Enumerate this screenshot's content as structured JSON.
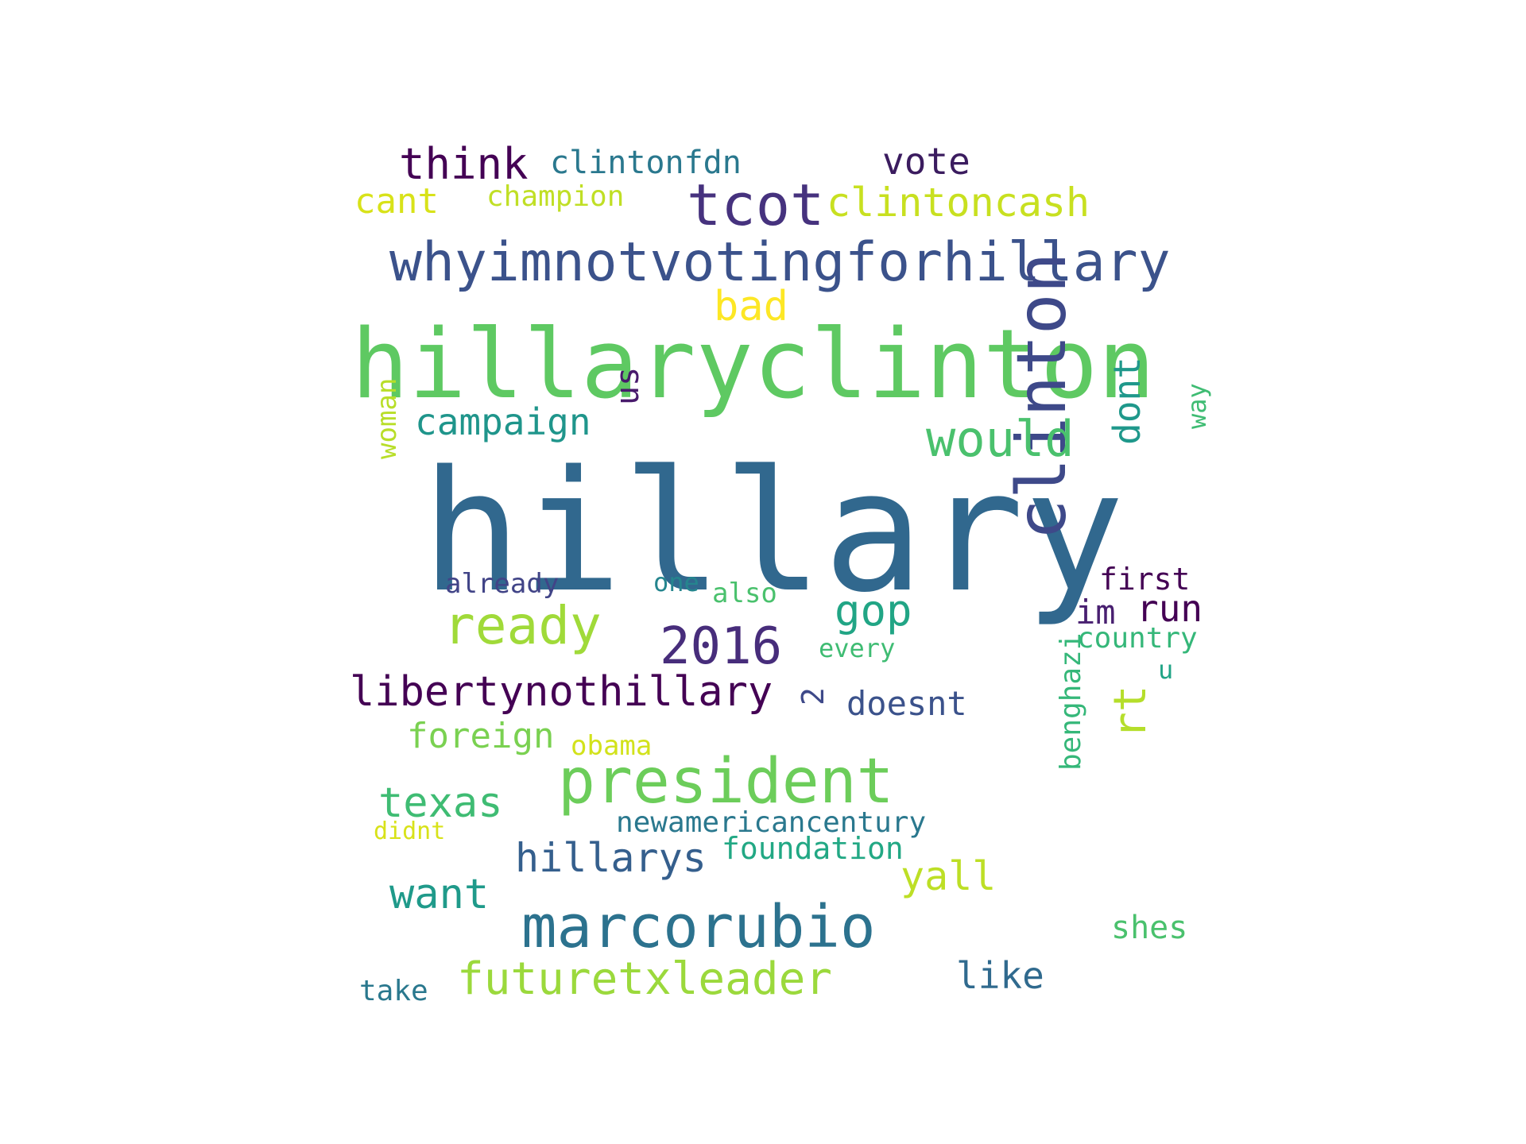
{
  "words": [
    {
      "text": "hillary",
      "color": "#31688e",
      "vertical": false
    },
    {
      "text": "hillaryclinton",
      "color": "#5ec962",
      "vertical": false
    },
    {
      "text": "whyimnotvotingforhillary",
      "color": "#3b528b",
      "vertical": false
    },
    {
      "text": "clinton",
      "color": "#3e4989",
      "vertical": true
    },
    {
      "text": "president",
      "color": "#6ccd5a",
      "vertical": false
    },
    {
      "text": "marcorubio",
      "color": "#2c728e",
      "vertical": false
    },
    {
      "text": "tcot",
      "color": "#46327e",
      "vertical": false
    },
    {
      "text": "ready",
      "color": "#a0da39",
      "vertical": false
    },
    {
      "text": "2016",
      "color": "#472d7b",
      "vertical": false
    },
    {
      "text": "would",
      "color": "#4ac16d",
      "vertical": false
    },
    {
      "text": "futuretxleader",
      "color": "#9bd93c",
      "vertical": false
    },
    {
      "text": "libertynothillary",
      "color": "#440154",
      "vertical": false
    },
    {
      "text": "think",
      "color": "#440154",
      "vertical": false
    },
    {
      "text": "clintoncash",
      "color": "#c8e020",
      "vertical": false
    },
    {
      "text": "gop",
      "color": "#21a585",
      "vertical": false
    },
    {
      "text": "rt",
      "color": "#b5de2b",
      "vertical": true
    },
    {
      "text": "texas",
      "color": "#3fbc73",
      "vertical": false
    },
    {
      "text": "want",
      "color": "#1f9a8a",
      "vertical": false
    },
    {
      "text": "hillarys",
      "color": "#355f8d",
      "vertical": false
    },
    {
      "text": "campaign",
      "color": "#1f958b",
      "vertical": false
    },
    {
      "text": "vote",
      "color": "#3b1c5f",
      "vertical": false
    },
    {
      "text": "yall",
      "color": "#bddf26",
      "vertical": false
    },
    {
      "text": "dont",
      "color": "#1f988b",
      "vertical": true
    },
    {
      "text": "run",
      "color": "#440154",
      "vertical": false
    },
    {
      "text": "bad",
      "color": "#fde725",
      "vertical": false
    },
    {
      "text": "like",
      "color": "#306a8e",
      "vertical": false
    },
    {
      "text": "doesnt",
      "color": "#3b528b",
      "vertical": false
    },
    {
      "text": "cant",
      "color": "#d8e219",
      "vertical": false
    },
    {
      "text": "clintonfdn",
      "color": "#2a788e",
      "vertical": false
    },
    {
      "text": "foreign",
      "color": "#7ad151",
      "vertical": false
    },
    {
      "text": "im",
      "color": "#481f70",
      "vertical": false
    },
    {
      "text": "benghazi",
      "color": "#35b779",
      "vertical": true
    },
    {
      "text": "foundation",
      "color": "#22a884",
      "vertical": false
    },
    {
      "text": "newamericancentury",
      "color": "#2a788e",
      "vertical": false
    },
    {
      "text": "us",
      "color": "#481a6c",
      "vertical": true
    },
    {
      "text": "shes",
      "color": "#4ac16d",
      "vertical": false
    },
    {
      "text": "first",
      "color": "#440154",
      "vertical": false
    },
    {
      "text": "champion",
      "color": "#c0df25",
      "vertical": false
    },
    {
      "text": "country",
      "color": "#35b779",
      "vertical": false
    },
    {
      "text": "2",
      "color": "#3e4989",
      "vertical": true
    },
    {
      "text": "woman",
      "color": "#b8de29",
      "vertical": true
    },
    {
      "text": "obama",
      "color": "#d2e21b",
      "vertical": false
    },
    {
      "text": "already",
      "color": "#414487",
      "vertical": false
    },
    {
      "text": "way",
      "color": "#3fbc73",
      "vertical": true
    },
    {
      "text": "also",
      "color": "#4ac16d",
      "vertical": false
    },
    {
      "text": "take",
      "color": "#2a788e",
      "vertical": false
    },
    {
      "text": "one",
      "color": "#25858e",
      "vertical": false
    },
    {
      "text": "every",
      "color": "#3fbc73",
      "vertical": false
    },
    {
      "text": "u",
      "color": "#20a486",
      "vertical": false
    },
    {
      "text": "didnt",
      "color": "#d8e219",
      "vertical": false
    }
  ]
}
